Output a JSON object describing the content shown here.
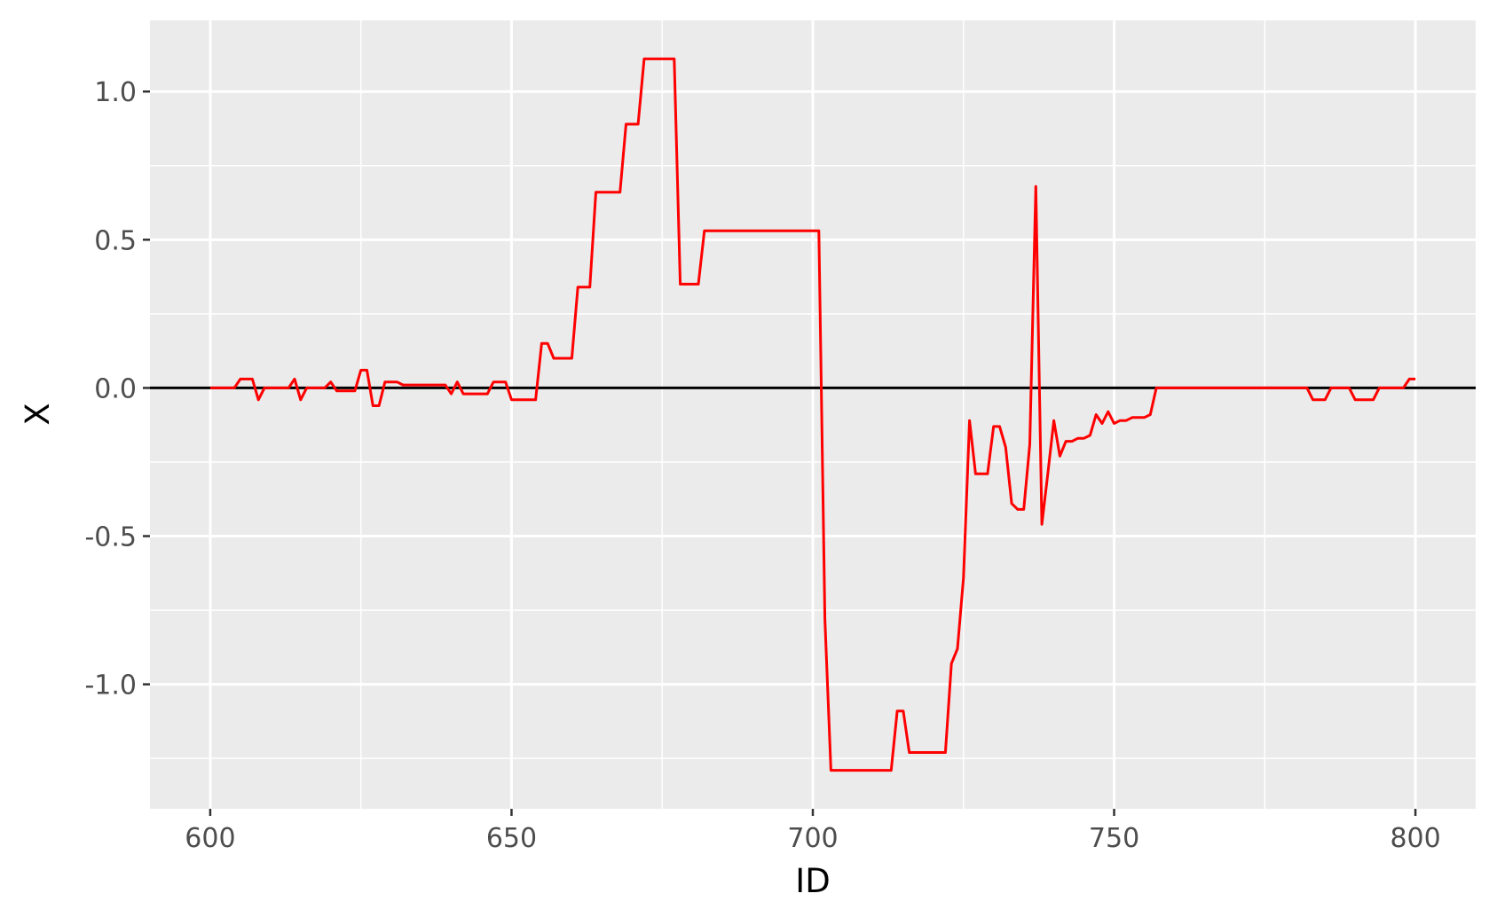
{
  "chart_data": {
    "type": "line",
    "title": "",
    "xlabel": "ID",
    "ylabel": "X",
    "xlim": [
      590,
      810
    ],
    "ylim": [
      -1.42,
      1.24
    ],
    "x_ticks": [
      600,
      650,
      700,
      750,
      800
    ],
    "x_tick_labels": [
      "600",
      "650",
      "700",
      "750",
      "800"
    ],
    "y_ticks": [
      -1.0,
      -0.5,
      0.0,
      0.5,
      1.0
    ],
    "y_tick_labels": [
      "-1.0",
      "-0.5",
      "0.0",
      "0.5",
      "1.0"
    ],
    "grid": true,
    "background": "#ebebeb",
    "reference_line": {
      "y": 0,
      "color": "#000000"
    },
    "series": [
      {
        "color": "#ff0000",
        "points": [
          [
            600,
            0.0
          ],
          [
            604,
            0.0
          ],
          [
            605,
            0.03
          ],
          [
            607,
            0.03
          ],
          [
            608,
            -0.04
          ],
          [
            609,
            0.0
          ],
          [
            613,
            0.0
          ],
          [
            614,
            0.03
          ],
          [
            615,
            -0.04
          ],
          [
            616,
            0.0
          ],
          [
            619,
            0.0
          ],
          [
            620,
            0.02
          ],
          [
            621,
            -0.01
          ],
          [
            624,
            -0.01
          ],
          [
            625,
            0.06
          ],
          [
            626,
            0.06
          ],
          [
            627,
            -0.06
          ],
          [
            628,
            -0.06
          ],
          [
            629,
            0.02
          ],
          [
            631,
            0.02
          ],
          [
            632,
            0.01
          ],
          [
            639,
            0.01
          ],
          [
            640,
            -0.02
          ],
          [
            641,
            0.02
          ],
          [
            642,
            -0.02
          ],
          [
            646,
            -0.02
          ],
          [
            647,
            0.02
          ],
          [
            649,
            0.02
          ],
          [
            650,
            -0.04
          ],
          [
            654,
            -0.04
          ],
          [
            655,
            0.15
          ],
          [
            656,
            0.15
          ],
          [
            657,
            0.1
          ],
          [
            660,
            0.1
          ],
          [
            661,
            0.34
          ],
          [
            663,
            0.34
          ],
          [
            664,
            0.66
          ],
          [
            668,
            0.66
          ],
          [
            669,
            0.89
          ],
          [
            671,
            0.89
          ],
          [
            672,
            1.11
          ],
          [
            677,
            1.11
          ],
          [
            678,
            0.35
          ],
          [
            681,
            0.35
          ],
          [
            682,
            0.53
          ],
          [
            701,
            0.53
          ],
          [
            702,
            -0.78
          ],
          [
            703,
            -1.29
          ],
          [
            713,
            -1.29
          ],
          [
            714,
            -1.09
          ],
          [
            715,
            -1.09
          ],
          [
            716,
            -1.23
          ],
          [
            722,
            -1.23
          ],
          [
            723,
            -0.93
          ],
          [
            724,
            -0.88
          ],
          [
            725,
            -0.64
          ],
          [
            726,
            -0.11
          ],
          [
            727,
            -0.29
          ],
          [
            729,
            -0.29
          ],
          [
            730,
            -0.13
          ],
          [
            731,
            -0.13
          ],
          [
            732,
            -0.2
          ],
          [
            733,
            -0.39
          ],
          [
            734,
            -0.41
          ],
          [
            735,
            -0.41
          ],
          [
            736,
            -0.19
          ],
          [
            737,
            0.68
          ],
          [
            738,
            -0.46
          ],
          [
            739,
            -0.29
          ],
          [
            740,
            -0.11
          ],
          [
            741,
            -0.23
          ],
          [
            742,
            -0.18
          ],
          [
            743,
            -0.18
          ],
          [
            744,
            -0.17
          ],
          [
            745,
            -0.17
          ],
          [
            746,
            -0.16
          ],
          [
            747,
            -0.09
          ],
          [
            748,
            -0.12
          ],
          [
            749,
            -0.08
          ],
          [
            750,
            -0.12
          ],
          [
            751,
            -0.11
          ],
          [
            752,
            -0.11
          ],
          [
            753,
            -0.1
          ],
          [
            754,
            -0.1
          ],
          [
            755,
            -0.1
          ],
          [
            756,
            -0.09
          ],
          [
            757,
            0.0
          ],
          [
            782,
            0.0
          ],
          [
            783,
            -0.04
          ],
          [
            785,
            -0.04
          ],
          [
            786,
            0.0
          ],
          [
            789,
            0.0
          ],
          [
            790,
            -0.04
          ],
          [
            793,
            -0.04
          ],
          [
            794,
            0.0
          ],
          [
            798,
            0.0
          ],
          [
            799,
            0.03
          ],
          [
            800,
            0.03
          ]
        ]
      }
    ]
  }
}
